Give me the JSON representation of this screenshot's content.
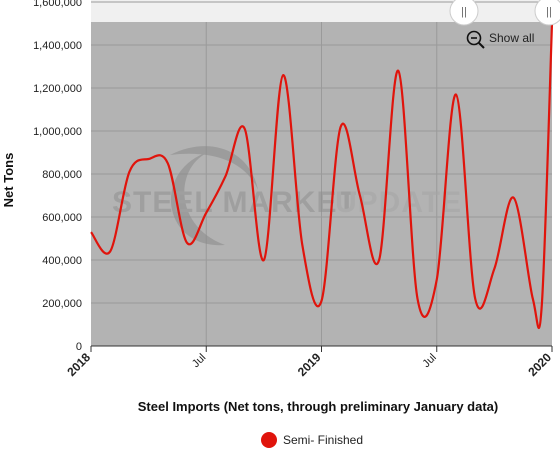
{
  "colors": {
    "plot_bg": "#b3b3b3",
    "nav_strip": "#f0f0f0",
    "grid": "#9a9a9a",
    "series": "#e0140c",
    "watermark": "#9c9c9c"
  },
  "watermark": {
    "bold": "STEEL MARKET",
    "light": "UPDATE"
  },
  "controls": {
    "show_all": "Show all",
    "zoom_icon": "zoom-out-magnifier-icon",
    "handle_glyph": "||"
  },
  "chart_data": {
    "type": "line",
    "title": "",
    "xlabel": "Steel Imports (Net tons, through preliminary January data)",
    "ylabel": "Net Tons",
    "x_unit": "month",
    "xlim": [
      "2018-01",
      "2020-01"
    ],
    "ylim": [
      0,
      1600000
    ],
    "yticks": [
      "0",
      "200,000",
      "400,000",
      "600,000",
      "800,000",
      "1,000,000",
      "1,200,000",
      "1,400,000",
      "1,600,000"
    ],
    "xticks": [
      {
        "label": "2018",
        "month": 0,
        "major": true
      },
      {
        "label": "Jul",
        "month": 6,
        "major": false
      },
      {
        "label": "2019",
        "month": 12,
        "major": true
      },
      {
        "label": "Jul",
        "month": 18,
        "major": false
      },
      {
        "label": "2020",
        "month": 24,
        "major": true
      }
    ],
    "grid": true,
    "legend_position": "bottom",
    "series": [
      {
        "name": "Semi- Finished",
        "color": "#e0140c",
        "points": [
          {
            "date": "2018-01",
            "value": 530000
          },
          {
            "date": "2018-02",
            "value": 440000
          },
          {
            "date": "2018-03",
            "value": 810000
          },
          {
            "date": "2018-04",
            "value": 870000
          },
          {
            "date": "2018-05",
            "value": 850000
          },
          {
            "date": "2018-06",
            "value": 480000
          },
          {
            "date": "2018-07",
            "value": 620000
          },
          {
            "date": "2018-08",
            "value": 790000
          },
          {
            "date": "2018-09",
            "value": 1010000
          },
          {
            "date": "2018-10",
            "value": 400000
          },
          {
            "date": "2018-11",
            "value": 1260000
          },
          {
            "date": "2018-12",
            "value": 470000
          },
          {
            "date": "2019-01",
            "value": 210000
          },
          {
            "date": "2019-02",
            "value": 1020000
          },
          {
            "date": "2019-03",
            "value": 700000
          },
          {
            "date": "2019-04",
            "value": 400000
          },
          {
            "date": "2019-05",
            "value": 1280000
          },
          {
            "date": "2019-06",
            "value": 220000
          },
          {
            "date": "2019-07",
            "value": 310000
          },
          {
            "date": "2019-08",
            "value": 1170000
          },
          {
            "date": "2019-09",
            "value": 220000
          },
          {
            "date": "2019-10",
            "value": 360000
          },
          {
            "date": "2019-11",
            "value": 690000
          },
          {
            "date": "2019-12",
            "value": 220000
          },
          {
            "date": "2019-12-15",
            "value": 190000
          },
          {
            "date": "2020-01",
            "value": 1500000
          }
        ]
      }
    ]
  }
}
